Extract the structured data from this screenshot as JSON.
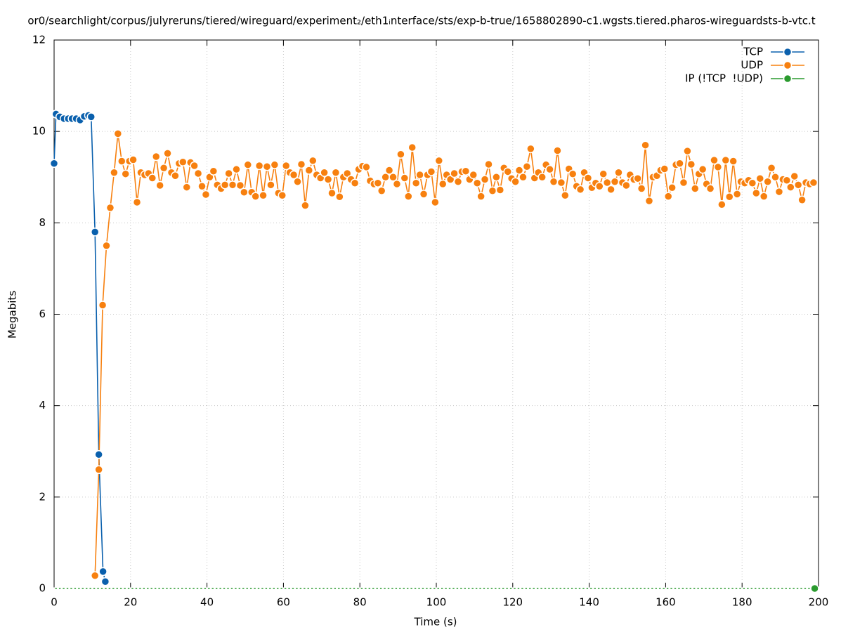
{
  "chart_data": {
    "type": "line",
    "title": "or0/searchlight/corpus/julyreruns/tiered/wireguard/experiment₂/eth1ᵢnterface/sts/exp-b-true/1658802890-c1.wgsts.tiered.pharos-wireguardsts-b-vtc.t",
    "x_label": "Time (s)",
    "y_label": "Megabits",
    "xlim": [
      0,
      200
    ],
    "xticks": [
      0,
      20,
      40,
      60,
      80,
      100,
      120,
      140,
      160,
      180,
      200
    ],
    "ylim": [
      0,
      12
    ],
    "yticks": [
      0,
      2,
      4,
      6,
      8,
      10,
      12
    ],
    "grid": true,
    "legend": "top-right",
    "series": [
      {
        "name": "TCP",
        "color": "#0a60ad",
        "x": [
          0,
          0.5,
          1.5,
          2.6,
          3.7,
          4.7,
          5.8,
          6.8,
          7.9,
          9,
          9.7,
          10.7,
          11.7,
          12.8,
          13.4
        ],
        "values": [
          9.3,
          10.38,
          10.32,
          10.28,
          10.28,
          10.28,
          10.28,
          10.25,
          10.33,
          10.35,
          10.32,
          7.8,
          2.93,
          0.37,
          0.15
        ]
      },
      {
        "name": "UDP",
        "color": "#f7800f",
        "x": [
          10.7,
          11.7,
          12.7,
          13.7,
          14.7,
          15.7,
          16.7,
          17.7,
          18.7,
          19.7,
          20.7,
          21.7,
          22.7,
          23.7,
          24.7,
          25.7,
          26.7,
          27.7,
          28.7,
          29.7,
          30.7,
          31.7,
          32.7,
          33.7,
          34.7,
          35.7,
          36.7,
          37.7,
          38.7,
          39.7,
          40.7,
          41.7,
          42.7,
          43.7,
          44.7,
          45.7,
          46.7,
          47.7,
          48.7,
          49.7,
          50.7,
          51.7,
          52.7,
          53.7,
          54.7,
          55.7,
          56.7,
          57.7,
          58.7,
          59.7,
          60.7,
          61.7,
          62.7,
          63.7,
          64.7,
          65.7,
          66.7,
          67.7,
          68.7,
          69.7,
          70.7,
          71.7,
          72.7,
          73.7,
          74.7,
          75.7,
          76.7,
          77.7,
          78.7,
          79.7,
          80.7,
          81.7,
          82.7,
          83.7,
          84.7,
          85.7,
          86.7,
          87.7,
          88.7,
          89.7,
          90.7,
          91.7,
          92.7,
          93.7,
          94.7,
          95.7,
          96.7,
          97.7,
          98.7,
          99.7,
          100.7,
          101.7,
          102.7,
          103.7,
          104.7,
          105.7,
          106.7,
          107.7,
          108.7,
          109.7,
          110.7,
          111.7,
          112.7,
          113.7,
          114.7,
          115.7,
          116.7,
          117.7,
          118.7,
          119.7,
          120.7,
          121.7,
          122.7,
          123.7,
          124.7,
          125.7,
          126.7,
          127.7,
          128.7,
          129.7,
          130.7,
          131.7,
          132.7,
          133.7,
          134.7,
          135.7,
          136.7,
          137.7,
          138.7,
          139.7,
          140.7,
          141.7,
          142.7,
          143.7,
          144.7,
          145.7,
          146.7,
          147.7,
          148.7,
          149.7,
          150.7,
          151.7,
          152.7,
          153.7,
          154.7,
          155.7,
          156.7,
          157.7,
          158.7,
          159.7,
          160.7,
          161.7,
          162.7,
          163.7,
          164.7,
          165.7,
          166.7,
          167.7,
          168.7,
          169.7,
          170.7,
          171.7,
          172.7,
          173.7,
          174.7,
          175.7,
          176.7,
          177.7,
          178.7,
          179.7,
          180.7,
          181.7,
          182.7,
          183.7,
          184.7,
          185.7,
          186.7,
          187.7,
          188.7,
          189.7,
          190.7,
          191.7,
          192.7,
          193.7,
          194.7,
          195.7,
          196.7,
          197.7,
          198.7
        ],
        "values": [
          0.28,
          2.6,
          6.2,
          7.5,
          8.33,
          9.1,
          9.95,
          9.35,
          9.07,
          9.35,
          9.38,
          8.45,
          9.1,
          9.05,
          9.08,
          8.98,
          9.45,
          8.82,
          9.2,
          9.52,
          9.1,
          9.03,
          9.3,
          9.33,
          8.78,
          9.32,
          9.25,
          9.08,
          8.8,
          8.62,
          9.0,
          9.13,
          8.83,
          8.75,
          8.83,
          9.08,
          8.83,
          9.17,
          8.82,
          8.67,
          9.27,
          8.67,
          8.58,
          9.25,
          8.6,
          9.23,
          8.83,
          9.27,
          8.65,
          8.6,
          9.25,
          9.1,
          9.05,
          8.9,
          9.28,
          8.38,
          9.15,
          9.36,
          9.05,
          8.98,
          9.1,
          8.95,
          8.65,
          9.1,
          8.57,
          9.0,
          9.08,
          8.95,
          8.87,
          9.17,
          9.24,
          9.22,
          8.92,
          8.85,
          8.87,
          8.7,
          9.0,
          9.15,
          9.0,
          8.85,
          9.5,
          8.98,
          8.58,
          9.65,
          8.87,
          9.05,
          8.63,
          9.05,
          9.12,
          8.45,
          9.36,
          8.85,
          9.05,
          8.95,
          9.08,
          8.9,
          9.12,
          9.13,
          8.95,
          9.05,
          8.87,
          8.58,
          8.95,
          9.28,
          8.7,
          9.0,
          8.72,
          9.2,
          9.12,
          8.97,
          8.9,
          9.15,
          9.0,
          9.23,
          9.62,
          8.98,
          9.1,
          9.0,
          9.27,
          9.17,
          8.9,
          9.58,
          8.88,
          8.6,
          9.18,
          9.07,
          8.8,
          8.73,
          9.1,
          8.98,
          8.77,
          8.87,
          8.8,
          9.07,
          8.88,
          8.73,
          8.9,
          9.1,
          8.88,
          8.82,
          9.05,
          8.95,
          8.97,
          8.75,
          9.7,
          8.48,
          9.0,
          9.03,
          9.15,
          9.18,
          8.58,
          8.77,
          9.27,
          9.3,
          8.88,
          9.57,
          9.28,
          8.75,
          9.07,
          9.17,
          8.85,
          8.75,
          9.37,
          9.22,
          8.4,
          9.37,
          8.57,
          9.35,
          8.63,
          8.9,
          8.87,
          8.93,
          8.87,
          8.65,
          8.97,
          8.58,
          8.9,
          9.2,
          9.0,
          8.68,
          8.95,
          8.93,
          8.78,
          9.02,
          8.83,
          8.5,
          8.88,
          8.85,
          8.88
        ]
      },
      {
        "name": "IP (!TCP  !UDP)",
        "color": "#2a9a2e",
        "x": [
          0,
          1,
          2,
          3,
          4,
          5,
          6,
          7,
          8,
          9,
          10,
          11,
          12,
          13,
          14,
          15,
          16,
          17,
          18,
          19,
          20,
          21,
          22,
          23,
          24,
          25,
          26,
          27,
          28,
          29,
          30,
          31,
          32,
          33,
          34,
          35,
          36,
          37,
          38,
          39,
          40,
          41,
          42,
          43,
          44,
          45,
          46,
          47,
          48,
          49,
          50,
          51,
          52,
          53,
          54,
          55,
          56,
          57,
          58,
          59,
          60,
          61,
          62,
          63,
          64,
          65,
          66,
          67,
          68,
          69,
          70,
          71,
          72,
          73,
          74,
          75,
          76,
          77,
          78,
          79,
          80,
          81,
          82,
          83,
          84,
          85,
          86,
          87,
          88,
          89,
          90,
          91,
          92,
          93,
          94,
          95,
          96,
          97,
          98,
          99,
          100,
          101,
          102,
          103,
          104,
          105,
          106,
          107,
          108,
          109,
          110,
          111,
          112,
          113,
          114,
          115,
          116,
          117,
          118,
          119,
          120,
          121,
          122,
          123,
          124,
          125,
          126,
          127,
          128,
          129,
          130,
          131,
          132,
          133,
          134,
          135,
          136,
          137,
          138,
          139,
          140,
          141,
          142,
          143,
          144,
          145,
          146,
          147,
          148,
          149,
          150,
          151,
          152,
          153,
          154,
          155,
          156,
          157,
          158,
          159,
          160,
          161,
          162,
          163,
          164,
          165,
          166,
          167,
          168,
          169,
          170,
          171,
          172,
          173,
          174,
          175,
          176,
          177,
          178,
          179,
          180,
          181,
          182,
          183,
          184,
          185,
          186,
          187,
          188,
          189,
          190,
          191,
          192,
          193,
          194,
          195,
          196,
          197,
          198,
          199
        ],
        "values": [
          0,
          0,
          0,
          0,
          0,
          0,
          0,
          0,
          0,
          0,
          0,
          0,
          0,
          0,
          0,
          0,
          0,
          0,
          0,
          0,
          0,
          0,
          0,
          0,
          0,
          0,
          0,
          0,
          0,
          0,
          0,
          0,
          0,
          0,
          0,
          0,
          0,
          0,
          0,
          0,
          0,
          0,
          0,
          0,
          0,
          0,
          0,
          0,
          0,
          0,
          0,
          0,
          0,
          0,
          0,
          0,
          0,
          0,
          0,
          0,
          0,
          0,
          0,
          0,
          0,
          0,
          0,
          0,
          0,
          0,
          0,
          0,
          0,
          0,
          0,
          0,
          0,
          0,
          0,
          0,
          0,
          0,
          0,
          0,
          0,
          0,
          0,
          0,
          0,
          0,
          0,
          0,
          0,
          0,
          0,
          0,
          0,
          0,
          0,
          0,
          0,
          0,
          0,
          0,
          0,
          0,
          0,
          0,
          0,
          0,
          0,
          0,
          0,
          0,
          0,
          0,
          0,
          0,
          0,
          0,
          0,
          0,
          0,
          0,
          0,
          0,
          0,
          0,
          0,
          0,
          0,
          0,
          0,
          0,
          0,
          0,
          0,
          0,
          0,
          0,
          0,
          0,
          0,
          0,
          0,
          0,
          0,
          0,
          0,
          0,
          0,
          0,
          0,
          0,
          0,
          0,
          0,
          0,
          0,
          0,
          0,
          0,
          0,
          0,
          0,
          0,
          0,
          0,
          0,
          0,
          0,
          0,
          0,
          0,
          0,
          0,
          0,
          0,
          0,
          0,
          0,
          0,
          0,
          0,
          0,
          0,
          0,
          0,
          0,
          0,
          0,
          0,
          0,
          0,
          0,
          0,
          0,
          0,
          0,
          0
        ]
      }
    ]
  }
}
